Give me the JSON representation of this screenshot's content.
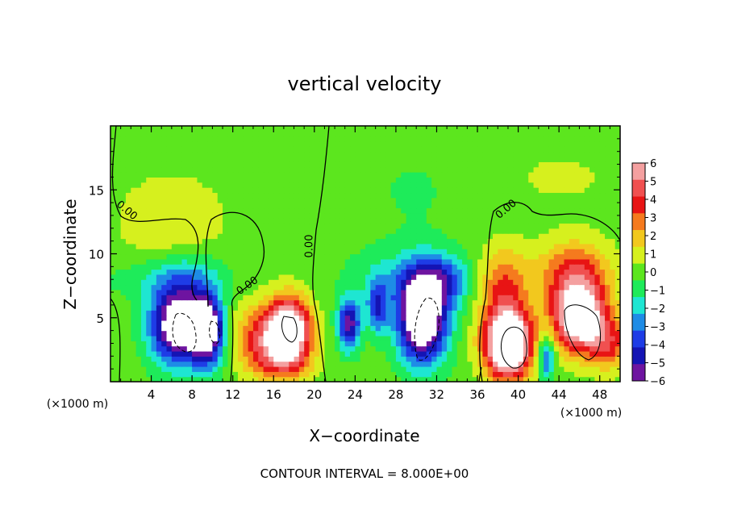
{
  "chart_data": {
    "type": "heatmap",
    "title": "vertical velocity",
    "xlabel": "X−coordinate",
    "ylabel": "Z−coordinate",
    "x_unit_left": "(×1000 m)",
    "x_unit_right": "(×1000 m)",
    "xlim": [
      0,
      50
    ],
    "ylim": [
      0,
      20
    ],
    "x_ticks": [
      4,
      8,
      12,
      16,
      20,
      24,
      28,
      32,
      36,
      40,
      44,
      48
    ],
    "x_tick_labels": [
      "4",
      "8",
      "12",
      "16",
      "20",
      "24",
      "28",
      "32",
      "36",
      "40",
      "44",
      "48"
    ],
    "y_ticks": [
      5,
      10,
      15
    ],
    "y_tick_labels": [
      "5",
      "10",
      "15"
    ],
    "footer": "CONTOUR INTERVAL = 8.000E+00",
    "colorbar": {
      "levels": [
        6,
        5,
        4,
        3,
        2,
        1,
        0,
        -1,
        -2,
        -3,
        -4,
        -5,
        -6
      ],
      "labels": [
        "6",
        "5",
        "4",
        "3",
        "2",
        "1",
        "0",
        "−1",
        "−2",
        "−3",
        "−4",
        "−5",
        "−6"
      ],
      "colors": [
        "#f4a0a0",
        "#f05050",
        "#e81414",
        "#f57a1e",
        "#f2c81e",
        "#d6f01e",
        "#5ce61e",
        "#1eeb5a",
        "#1ee6d2",
        "#1e8ce6",
        "#1e3ce6",
        "#1414b4",
        "#6e14a0"
      ]
    },
    "contour_labels": [
      {
        "text": "0.00",
        "x": 1.4,
        "y": 13.2,
        "angle": 40
      },
      {
        "text": "0.00",
        "x": 13.6,
        "y": 7.3,
        "angle": -35
      },
      {
        "text": "0.00",
        "x": 19.8,
        "y": 10.6,
        "angle": -90
      },
      {
        "text": "0.00",
        "x": 39.0,
        "y": 13.3,
        "angle": -40
      }
    ],
    "cells": [
      {
        "x": 6.8,
        "y": 4.5,
        "sx": 2.8,
        "sy": 3.0,
        "v": -9
      },
      {
        "x": 9.6,
        "y": 4.0,
        "sx": 1.5,
        "sy": 2.6,
        "v": -7
      },
      {
        "x": 7.5,
        "y": 8.5,
        "sx": 4.0,
        "sy": 2.0,
        "v": -1.6
      },
      {
        "x": 3.5,
        "y": 8.0,
        "sx": 6.0,
        "sy": 1.5,
        "v": -0.8
      },
      {
        "x": 6.0,
        "y": 12.5,
        "sx": 5.0,
        "sy": 3.5,
        "v": 1.5
      },
      {
        "x": 17.6,
        "y": 4.2,
        "sx": 2.0,
        "sy": 2.4,
        "v": 8
      },
      {
        "x": 15.2,
        "y": 3.5,
        "sx": 3.0,
        "sy": 2.5,
        "v": 4.5
      },
      {
        "x": 17.0,
        "y": 1.5,
        "sx": 3.0,
        "sy": 1.5,
        "v": 2.5
      },
      {
        "x": 23.4,
        "y": 4.5,
        "sx": 1.1,
        "sy": 2.0,
        "v": -6
      },
      {
        "x": 26.2,
        "y": 5.8,
        "sx": 1.0,
        "sy": 2.0,
        "v": -4
      },
      {
        "x": 30.6,
        "y": 5.0,
        "sx": 2.4,
        "sy": 3.4,
        "v": -9.5
      },
      {
        "x": 32.5,
        "y": 8.0,
        "sx": 3.0,
        "sy": 2.0,
        "v": -3.5
      },
      {
        "x": 27.5,
        "y": 8.0,
        "sx": 4.5,
        "sy": 2.5,
        "v": -1.6
      },
      {
        "x": 39.0,
        "y": 3.0,
        "sx": 2.3,
        "sy": 2.6,
        "v": 11
      },
      {
        "x": 38.5,
        "y": 7.5,
        "sx": 2.5,
        "sy": 3.0,
        "v": 3.5
      },
      {
        "x": 46.0,
        "y": 5.0,
        "sx": 2.6,
        "sy": 2.6,
        "v": 9
      },
      {
        "x": 45.5,
        "y": 8.5,
        "sx": 3.5,
        "sy": 2.5,
        "v": 4
      },
      {
        "x": 42.8,
        "y": 2.0,
        "sx": 0.8,
        "sy": 1.8,
        "v": -4.5
      },
      {
        "x": 49.0,
        "y": 3.0,
        "sx": 2.0,
        "sy": 2.0,
        "v": 3.5
      },
      {
        "x": 30.0,
        "y": 15.0,
        "sx": 6.0,
        "sy": 4.0,
        "v": -0.6
      },
      {
        "x": 44.0,
        "y": 16.0,
        "sx": 8.0,
        "sy": 3.0,
        "v": 0.6
      }
    ]
  }
}
